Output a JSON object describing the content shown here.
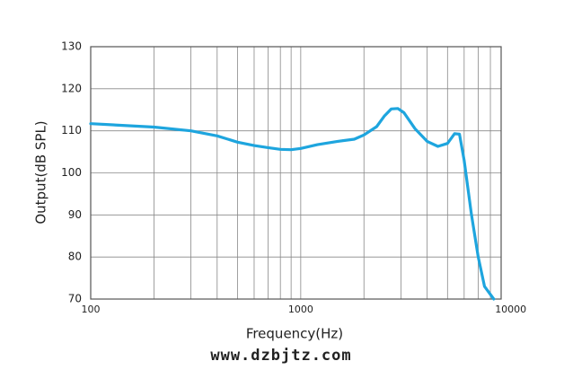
{
  "chart_data": {
    "type": "line",
    "x_label": "Frequency(Hz)",
    "y_label": "Output(dB SPL)",
    "log_x": true,
    "grid": true,
    "x": [
      100,
      200,
      300,
      400,
      500,
      600,
      700,
      800,
      900,
      1000,
      1200,
      1500,
      1800,
      2000,
      2300,
      2500,
      2700,
      2900,
      3100,
      3500,
      4000,
      4500,
      5000,
      5400,
      5700,
      6000,
      6500,
      7000,
      7500,
      8300
    ],
    "series": [
      {
        "color": "#1ea5de",
        "values": [
          111.7,
          110.9,
          110,
          108.8,
          107.3,
          106.5,
          106,
          105.6,
          105.5,
          105.8,
          106.7,
          107.5,
          108,
          109,
          111,
          113.5,
          115.2,
          115.3,
          114.3,
          110.5,
          107.5,
          106.3,
          107,
          109.3,
          109.2,
          103,
          90,
          80,
          73,
          70
        ]
      }
    ],
    "xlim": [
      100,
      9000
    ],
    "xticks": [
      100,
      1000,
      10000
    ],
    "ylim": [
      70,
      130
    ],
    "yticks": [
      70,
      80,
      90,
      100,
      110,
      120,
      130
    ]
  },
  "watermark": "www.dzbjtz.com"
}
